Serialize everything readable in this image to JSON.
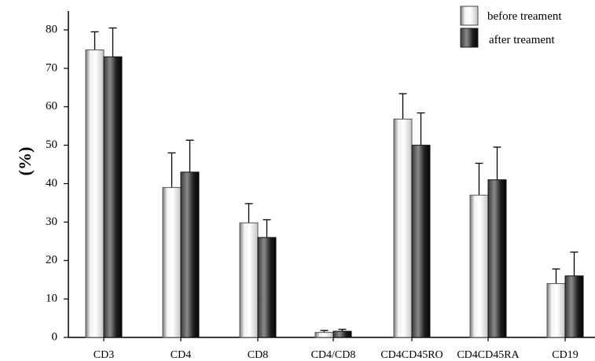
{
  "chart_data": {
    "type": "bar",
    "title": "",
    "xlabel": "",
    "ylabel": "(%)",
    "ylim": [
      0,
      80
    ],
    "yticks": [
      0,
      10,
      20,
      30,
      40,
      50,
      60,
      70,
      80
    ],
    "grid": false,
    "legend_position": "top-right",
    "categories": [
      "CD3",
      "CD4",
      "CD8",
      "CD4/CD8",
      "CD4CD45RO",
      "CD4CD45RA",
      "CD19"
    ],
    "series": [
      {
        "name": "before treament",
        "values": [
          74.8,
          39.0,
          29.8,
          1.3,
          56.8,
          37.0,
          14.0
        ],
        "errors": [
          4.7,
          9.0,
          5.0,
          0.5,
          6.6,
          8.3,
          3.8
        ],
        "color": "light-gradient"
      },
      {
        "name": "after treament",
        "values": [
          73.0,
          43.0,
          26.0,
          1.6,
          50.0,
          41.0,
          16.0
        ],
        "errors": [
          7.5,
          8.3,
          4.6,
          0.5,
          8.4,
          8.5,
          6.2
        ],
        "color": "dark-gradient"
      }
    ]
  }
}
